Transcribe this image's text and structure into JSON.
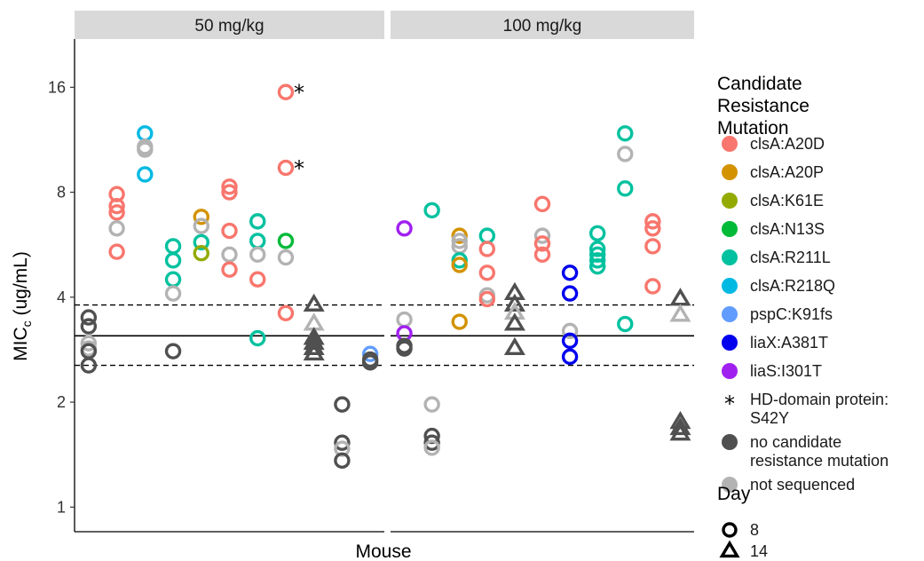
{
  "colors": {
    "clsA:A20D": "#F8766D",
    "clsA:A20P": "#D39200",
    "clsA:K61E": "#93AA00",
    "clsA:N13S": "#00BA38",
    "clsA:R211L": "#00C19F",
    "clsA:R218Q": "#00B9E3",
    "pspC:K91fs": "#619CFF",
    "liaX:A381T": "#0000EE",
    "liaS:I301T": "#A020F0",
    "none": "#505050",
    "notseq": "#B3B3B3"
  },
  "chart_data": {
    "type": "scatter",
    "xlabel": "Mouse",
    "ylabel_main": "MIC",
    "ylabel_sub": "c",
    "ylabel_rest": " (ug/mL)",
    "y_scale": "log2",
    "ylim": [
      0.85,
      22
    ],
    "y_ticks": [
      1,
      2,
      4,
      8,
      16
    ],
    "y_tick_labels": [
      "1",
      "2",
      "4",
      "8",
      "16"
    ],
    "hline_solid": 3.1,
    "hline_dashed": [
      3.8,
      2.55
    ],
    "grid": false,
    "legend_position": "right",
    "facets": [
      {
        "label": "50 mg/kg",
        "n_mice": 11,
        "points": [
          {
            "m": 1,
            "y": 3.5,
            "c": "none",
            "s": "circle"
          },
          {
            "m": 1,
            "y": 3.3,
            "c": "none",
            "s": "circle"
          },
          {
            "m": 1,
            "y": 2.95,
            "c": "notseq",
            "s": "circle"
          },
          {
            "m": 1,
            "y": 2.85,
            "c": "notseq",
            "s": "circle"
          },
          {
            "m": 1,
            "y": 2.8,
            "c": "none",
            "s": "circle"
          },
          {
            "m": 1,
            "y": 2.55,
            "c": "none",
            "s": "circle"
          },
          {
            "m": 2,
            "y": 7.9,
            "c": "clsA:A20D",
            "s": "circle"
          },
          {
            "m": 2,
            "y": 7.3,
            "c": "clsA:A20D",
            "s": "circle"
          },
          {
            "m": 2,
            "y": 7.0,
            "c": "clsA:A20D",
            "s": "circle"
          },
          {
            "m": 2,
            "y": 6.3,
            "c": "notseq",
            "s": "circle"
          },
          {
            "m": 2,
            "y": 5.4,
            "c": "clsA:A20D",
            "s": "circle"
          },
          {
            "m": 3,
            "y": 11.8,
            "c": "clsA:R218Q",
            "s": "circle"
          },
          {
            "m": 3,
            "y": 10.8,
            "c": "notseq",
            "s": "circle"
          },
          {
            "m": 3,
            "y": 10.6,
            "c": "notseq",
            "s": "circle"
          },
          {
            "m": 3,
            "y": 9.0,
            "c": "clsA:R218Q",
            "s": "circle"
          },
          {
            "m": 4,
            "y": 5.6,
            "c": "clsA:R211L",
            "s": "circle"
          },
          {
            "m": 4,
            "y": 5.1,
            "c": "clsA:R211L",
            "s": "circle"
          },
          {
            "m": 4,
            "y": 4.5,
            "c": "clsA:R211L",
            "s": "circle"
          },
          {
            "m": 4,
            "y": 4.1,
            "c": "notseq",
            "s": "circle"
          },
          {
            "m": 4,
            "y": 2.8,
            "c": "none",
            "s": "circle"
          },
          {
            "m": 5,
            "y": 6.8,
            "c": "clsA:A20P",
            "s": "circle"
          },
          {
            "m": 5,
            "y": 6.4,
            "c": "notseq",
            "s": "circle"
          },
          {
            "m": 5,
            "y": 5.75,
            "c": "clsA:R211L",
            "s": "circle"
          },
          {
            "m": 5,
            "y": 5.35,
            "c": "clsA:K61E",
            "s": "circle"
          },
          {
            "m": 6,
            "y": 8.3,
            "c": "clsA:A20D",
            "s": "circle"
          },
          {
            "m": 6,
            "y": 8.0,
            "c": "clsA:A20D",
            "s": "circle"
          },
          {
            "m": 6,
            "y": 6.2,
            "c": "clsA:A20D",
            "s": "circle"
          },
          {
            "m": 6,
            "y": 5.3,
            "c": "notseq",
            "s": "circle"
          },
          {
            "m": 6,
            "y": 4.8,
            "c": "clsA:A20D",
            "s": "circle"
          },
          {
            "m": 7,
            "y": 6.6,
            "c": "clsA:R211L",
            "s": "circle"
          },
          {
            "m": 7,
            "y": 5.8,
            "c": "clsA:R211L",
            "s": "circle"
          },
          {
            "m": 7,
            "y": 5.3,
            "c": "notseq",
            "s": "circle"
          },
          {
            "m": 7,
            "y": 4.5,
            "c": "clsA:A20D",
            "s": "circle"
          },
          {
            "m": 7,
            "y": 3.05,
            "c": "clsA:R211L",
            "s": "circle"
          },
          {
            "m": 8,
            "y": 15.5,
            "c": "clsA:A20D",
            "s": "circle"
          },
          {
            "m": 8,
            "y": 9.4,
            "c": "clsA:A20D",
            "s": "circle"
          },
          {
            "m": 8,
            "y": 5.8,
            "c": "clsA:N13S",
            "s": "circle"
          },
          {
            "m": 8,
            "y": 5.2,
            "c": "notseq",
            "s": "circle"
          },
          {
            "m": 8,
            "y": 3.6,
            "c": "clsA:A20D",
            "s": "circle"
          },
          {
            "m": 9,
            "y": 3.8,
            "c": "none",
            "s": "triangle"
          },
          {
            "m": 9,
            "y": 3.35,
            "c": "notseq",
            "s": "triangle"
          },
          {
            "m": 9,
            "y": 3.05,
            "c": "none",
            "s": "triangle"
          },
          {
            "m": 9,
            "y": 2.95,
            "c": "none",
            "s": "triangle"
          },
          {
            "m": 9,
            "y": 2.85,
            "c": "none",
            "s": "triangle"
          },
          {
            "m": 9,
            "y": 2.75,
            "c": "none",
            "s": "triangle"
          },
          {
            "m": 10,
            "y": 1.97,
            "c": "none",
            "s": "circle"
          },
          {
            "m": 10,
            "y": 1.53,
            "c": "none",
            "s": "circle"
          },
          {
            "m": 10,
            "y": 1.47,
            "c": "notseq",
            "s": "circle"
          },
          {
            "m": 10,
            "y": 1.36,
            "c": "none",
            "s": "circle"
          },
          {
            "m": 11,
            "y": 2.75,
            "c": "pspC:K91fs",
            "s": "circle"
          },
          {
            "m": 11,
            "y": 2.65,
            "c": "none",
            "s": "circle"
          },
          {
            "m": 11,
            "y": 2.6,
            "c": "none",
            "s": "circle"
          }
        ],
        "stars": [
          {
            "m": 8,
            "y": 15.5
          },
          {
            "m": 8,
            "y": 9.4
          }
        ]
      },
      {
        "label": "100 mg/kg",
        "n_mice": 11,
        "points": [
          {
            "m": 1,
            "y": 6.3,
            "c": "liaS:I301T",
            "s": "circle"
          },
          {
            "m": 1,
            "y": 3.45,
            "c": "notseq",
            "s": "circle"
          },
          {
            "m": 1,
            "y": 3.15,
            "c": "liaS:I301T",
            "s": "circle"
          },
          {
            "m": 1,
            "y": 2.9,
            "c": "none",
            "s": "circle"
          },
          {
            "m": 1,
            "y": 2.85,
            "c": "none",
            "s": "circle"
          },
          {
            "m": 2,
            "y": 7.1,
            "c": "clsA:R211L",
            "s": "circle"
          },
          {
            "m": 2,
            "y": 1.97,
            "c": "notseq",
            "s": "circle"
          },
          {
            "m": 2,
            "y": 1.6,
            "c": "none",
            "s": "circle"
          },
          {
            "m": 2,
            "y": 1.53,
            "c": "none",
            "s": "circle"
          },
          {
            "m": 2,
            "y": 1.48,
            "c": "notseq",
            "s": "circle"
          },
          {
            "m": 3,
            "y": 6.0,
            "c": "clsA:A20P",
            "s": "circle"
          },
          {
            "m": 3,
            "y": 5.8,
            "c": "notseq",
            "s": "circle"
          },
          {
            "m": 3,
            "y": 5.6,
            "c": "notseq",
            "s": "circle"
          },
          {
            "m": 3,
            "y": 5.1,
            "c": "clsA:R211L",
            "s": "circle"
          },
          {
            "m": 3,
            "y": 4.95,
            "c": "clsA:A20P",
            "s": "circle"
          },
          {
            "m": 3,
            "y": 3.4,
            "c": "clsA:A20P",
            "s": "circle"
          },
          {
            "m": 4,
            "y": 6.0,
            "c": "clsA:R211L",
            "s": "circle"
          },
          {
            "m": 4,
            "y": 5.5,
            "c": "clsA:A20D",
            "s": "circle"
          },
          {
            "m": 4,
            "y": 4.7,
            "c": "clsA:A20D",
            "s": "circle"
          },
          {
            "m": 4,
            "y": 4.05,
            "c": "notseq",
            "s": "circle"
          },
          {
            "m": 4,
            "y": 3.95,
            "c": "clsA:A20D",
            "s": "circle"
          },
          {
            "m": 5,
            "y": 4.1,
            "c": "none",
            "s": "triangle"
          },
          {
            "m": 5,
            "y": 3.8,
            "c": "none",
            "s": "triangle"
          },
          {
            "m": 5,
            "y": 3.6,
            "c": "notseq",
            "s": "triangle"
          },
          {
            "m": 5,
            "y": 3.35,
            "c": "none",
            "s": "triangle"
          },
          {
            "m": 5,
            "y": 2.85,
            "c": "none",
            "s": "triangle"
          },
          {
            "m": 6,
            "y": 7.4,
            "c": "clsA:A20D",
            "s": "circle"
          },
          {
            "m": 6,
            "y": 6.0,
            "c": "notseq",
            "s": "circle"
          },
          {
            "m": 6,
            "y": 5.7,
            "c": "clsA:A20D",
            "s": "circle"
          },
          {
            "m": 6,
            "y": 5.3,
            "c": "clsA:A20D",
            "s": "circle"
          },
          {
            "m": 7,
            "y": 4.7,
            "c": "liaX:A381T",
            "s": "circle"
          },
          {
            "m": 7,
            "y": 4.1,
            "c": "liaX:A381T",
            "s": "circle"
          },
          {
            "m": 7,
            "y": 3.2,
            "c": "notseq",
            "s": "circle"
          },
          {
            "m": 7,
            "y": 3.0,
            "c": "liaX:A381T",
            "s": "circle"
          },
          {
            "m": 7,
            "y": 2.7,
            "c": "liaX:A381T",
            "s": "circle"
          },
          {
            "m": 8,
            "y": 6.1,
            "c": "clsA:R211L",
            "s": "circle"
          },
          {
            "m": 8,
            "y": 5.5,
            "c": "clsA:R211L",
            "s": "circle"
          },
          {
            "m": 8,
            "y": 5.3,
            "c": "clsA:R211L",
            "s": "circle"
          },
          {
            "m": 8,
            "y": 5.1,
            "c": "clsA:R211L",
            "s": "circle"
          },
          {
            "m": 8,
            "y": 4.9,
            "c": "clsA:R211L",
            "s": "circle"
          },
          {
            "m": 9,
            "y": 11.8,
            "c": "clsA:R211L",
            "s": "circle"
          },
          {
            "m": 9,
            "y": 10.3,
            "c": "notseq",
            "s": "circle"
          },
          {
            "m": 9,
            "y": 8.2,
            "c": "clsA:R211L",
            "s": "circle"
          },
          {
            "m": 9,
            "y": 3.35,
            "c": "clsA:R211L",
            "s": "circle"
          },
          {
            "m": 10,
            "y": 6.6,
            "c": "clsA:A20D",
            "s": "circle"
          },
          {
            "m": 10,
            "y": 6.3,
            "c": "clsA:A20D",
            "s": "circle"
          },
          {
            "m": 10,
            "y": 5.6,
            "c": "clsA:A20D",
            "s": "circle"
          },
          {
            "m": 10,
            "y": 4.3,
            "c": "clsA:A20D",
            "s": "circle"
          },
          {
            "m": 11,
            "y": 3.95,
            "c": "none",
            "s": "triangle"
          },
          {
            "m": 11,
            "y": 3.55,
            "c": "notseq",
            "s": "triangle"
          },
          {
            "m": 11,
            "y": 1.75,
            "c": "none",
            "s": "triangle"
          },
          {
            "m": 11,
            "y": 1.68,
            "c": "none",
            "s": "triangle"
          },
          {
            "m": 11,
            "y": 1.62,
            "c": "none",
            "s": "triangle"
          }
        ],
        "stars": []
      }
    ],
    "legend": {
      "title_lines": [
        "Candidate",
        "Resistance",
        "Mutation"
      ],
      "entries": [
        {
          "key": "clsA:A20D",
          "lines": [
            "clsA:A20D"
          ],
          "kind": "dot"
        },
        {
          "key": "clsA:A20P",
          "lines": [
            "clsA:A20P"
          ],
          "kind": "dot"
        },
        {
          "key": "clsA:K61E",
          "lines": [
            "clsA:K61E"
          ],
          "kind": "dot"
        },
        {
          "key": "clsA:N13S",
          "lines": [
            "clsA:N13S"
          ],
          "kind": "dot"
        },
        {
          "key": "clsA:R211L",
          "lines": [
            "clsA:R211L"
          ],
          "kind": "dot"
        },
        {
          "key": "clsA:R218Q",
          "lines": [
            "clsA:R218Q"
          ],
          "kind": "dot"
        },
        {
          "key": "pspC:K91fs",
          "lines": [
            "pspC:K91fs"
          ],
          "kind": "dot"
        },
        {
          "key": "liaX:A381T",
          "lines": [
            "liaX:A381T"
          ],
          "kind": "dot"
        },
        {
          "key": "liaS:I301T",
          "lines": [
            "liaS:I301T"
          ],
          "kind": "dot"
        },
        {
          "key": "star",
          "lines": [
            "HD-domain protein:",
            "S42Y"
          ],
          "kind": "star"
        },
        {
          "key": "none",
          "lines": [
            "no candidate",
            "resistance mutation"
          ],
          "kind": "dot"
        },
        {
          "key": "notseq",
          "lines": [
            "not sequenced"
          ],
          "kind": "dot"
        }
      ],
      "day_title": "Day",
      "day_entries": [
        {
          "label": "8",
          "shape": "circle"
        },
        {
          "label": "14",
          "shape": "triangle"
        }
      ]
    }
  }
}
